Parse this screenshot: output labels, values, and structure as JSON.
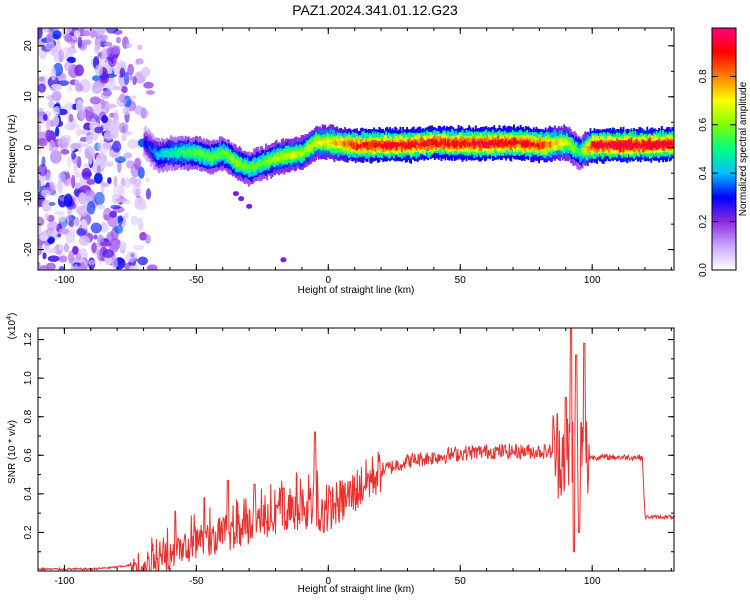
{
  "title": "PAZ1.2024.341.01.12.G23",
  "chart_data": [
    {
      "type": "heatmap",
      "xlabel": "Height of straight line (km)",
      "ylabel": "Frequency (Hz)",
      "xlim": [
        -110,
        131
      ],
      "ylim": [
        -24,
        23.5
      ],
      "xticks": [
        -100,
        -50,
        0,
        50,
        100
      ],
      "yticks": [
        -20,
        -10,
        0,
        10,
        20
      ],
      "colorbar": {
        "label": "Normalized spectral amplitude",
        "range": [
          0.0,
          1.0
        ],
        "ticks": [
          0.0,
          0.2,
          0.4,
          0.6,
          0.8
        ],
        "colors": [
          "#ffffff",
          "#c9a6ff",
          "#8a2be2",
          "#0000ff",
          "#00bfff",
          "#00ff80",
          "#80ff00",
          "#ffff00",
          "#ff8000",
          "#ff0000",
          "#ff0080"
        ]
      },
      "ridge": {
        "x": [
          -70,
          -65,
          -60,
          -55,
          -50,
          -45,
          -40,
          -35,
          -30,
          -25,
          -20,
          -15,
          -10,
          -5,
          0,
          10,
          20,
          30,
          40,
          50,
          60,
          70,
          80,
          90,
          95,
          100,
          110,
          120,
          131
        ],
        "frequency": [
          1,
          -1.5,
          -1,
          -1,
          -1,
          -2,
          -1,
          -3,
          -4,
          -3,
          -2,
          -1.5,
          -1,
          1,
          1,
          0.5,
          0.5,
          0.5,
          1,
          0.8,
          0.8,
          1,
          0.5,
          1,
          -1,
          0.5,
          0.5,
          0.5,
          0.8
        ],
        "amplitude": [
          0.2,
          0.35,
          0.4,
          0.45,
          0.5,
          0.5,
          0.5,
          0.55,
          0.5,
          0.5,
          0.55,
          0.6,
          0.55,
          0.6,
          0.65,
          0.8,
          0.85,
          0.85,
          0.85,
          0.85,
          0.85,
          0.85,
          0.8,
          0.6,
          0.45,
          0.85,
          0.9,
          0.9,
          0.85
        ]
      },
      "noise_region_x": [
        -110,
        -65
      ]
    },
    {
      "type": "line",
      "xlabel": "Height of straight line (km)",
      "ylabel": "SNR (10 * v/v)",
      "y_multiplier": "(x10^4)",
      "xlim": [
        -110,
        131
      ],
      "ylim": [
        0,
        1.26
      ],
      "xticks": [
        -100,
        -50,
        0,
        50,
        100
      ],
      "yticks": [
        0.2,
        0.4,
        0.6,
        0.8,
        1.0,
        1.2
      ],
      "color": "#e8312f",
      "envelope": {
        "x": [
          -110,
          -90,
          -80,
          -75,
          -70,
          -65,
          -60,
          -55,
          -50,
          -45,
          -40,
          -35,
          -30,
          -25,
          -20,
          -15,
          -10,
          -5,
          0,
          5,
          10,
          15,
          20,
          30,
          40,
          50,
          60,
          70,
          80,
          85,
          90,
          92,
          95,
          98,
          100,
          110,
          119,
          120,
          125,
          131
        ],
        "y": [
          0.01,
          0.01,
          0.02,
          0.03,
          0.05,
          0.08,
          0.12,
          0.16,
          0.2,
          0.22,
          0.24,
          0.26,
          0.29,
          0.31,
          0.33,
          0.36,
          0.38,
          0.4,
          0.33,
          0.36,
          0.41,
          0.47,
          0.52,
          0.57,
          0.59,
          0.61,
          0.62,
          0.62,
          0.62,
          0.62,
          0.62,
          0.6,
          0.62,
          0.59,
          0.59,
          0.59,
          0.59,
          0.28,
          0.28,
          0.28
        ]
      },
      "peaks": [
        {
          "x": -58,
          "y": 0.31
        },
        {
          "x": -47,
          "y": 0.38
        },
        {
          "x": -38,
          "y": 0.47
        },
        {
          "x": -28,
          "y": 0.45
        },
        {
          "x": -17,
          "y": 0.43
        },
        {
          "x": -5,
          "y": 0.72
        },
        {
          "x": 90,
          "y": 0.9
        },
        {
          "x": 92,
          "y": 1.26
        },
        {
          "x": 93,
          "y": 0.1
        },
        {
          "x": 94,
          "y": 1.12
        },
        {
          "x": 95,
          "y": 0.2
        },
        {
          "x": 97,
          "y": 1.18
        }
      ]
    }
  ]
}
